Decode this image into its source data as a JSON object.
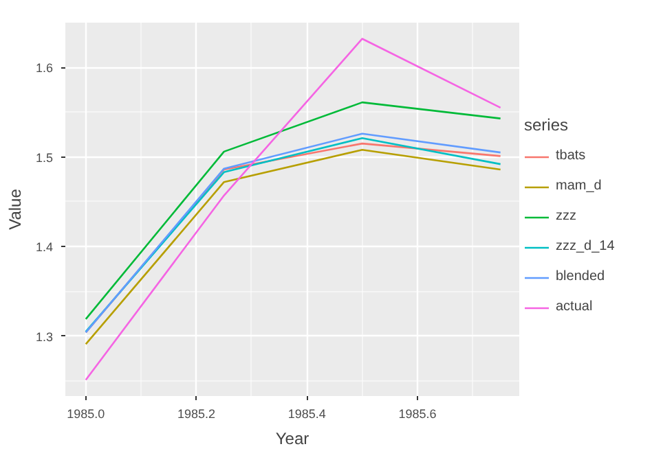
{
  "chart_data": {
    "type": "line",
    "xlabel": "Year",
    "ylabel": "Value",
    "legend_title": "series",
    "x": [
      1985.0,
      1985.25,
      1985.5,
      1985.75
    ],
    "series": [
      {
        "name": "tbats",
        "color": "#f8766d",
        "values": [
          1.304,
          1.486,
          1.515,
          1.501
        ]
      },
      {
        "name": "mam_d",
        "color": "#b79f00",
        "values": [
          1.291,
          1.472,
          1.508,
          1.486
        ]
      },
      {
        "name": "zzz",
        "color": "#00ba38",
        "values": [
          1.319,
          1.506,
          1.561,
          1.543
        ]
      },
      {
        "name": "zzz_d_14",
        "color": "#00bfc4",
        "values": [
          1.305,
          1.483,
          1.521,
          1.492
        ]
      },
      {
        "name": "blended",
        "color": "#619cff",
        "values": [
          1.304,
          1.487,
          1.526,
          1.505
        ]
      },
      {
        "name": "actual",
        "color": "#f564e3",
        "values": [
          1.251,
          1.457,
          1.632,
          1.555
        ]
      }
    ],
    "xlim": [
      1984.963,
      1985.784
    ],
    "ylim": [
      1.233,
      1.65
    ],
    "xticks": [
      {
        "value": 1985.0,
        "label": "1985.0"
      },
      {
        "value": 1985.2,
        "label": "1985.2"
      },
      {
        "value": 1985.4,
        "label": "1985.4"
      },
      {
        "value": 1985.6,
        "label": "1985.6"
      }
    ],
    "yticks": [
      {
        "value": 1.3,
        "label": "1.3"
      },
      {
        "value": 1.4,
        "label": "1.4"
      },
      {
        "value": 1.5,
        "label": "1.5"
      },
      {
        "value": 1.6,
        "label": "1.6"
      }
    ],
    "grid": true,
    "legend": "right",
    "line_style": "solid",
    "marker": "none"
  }
}
